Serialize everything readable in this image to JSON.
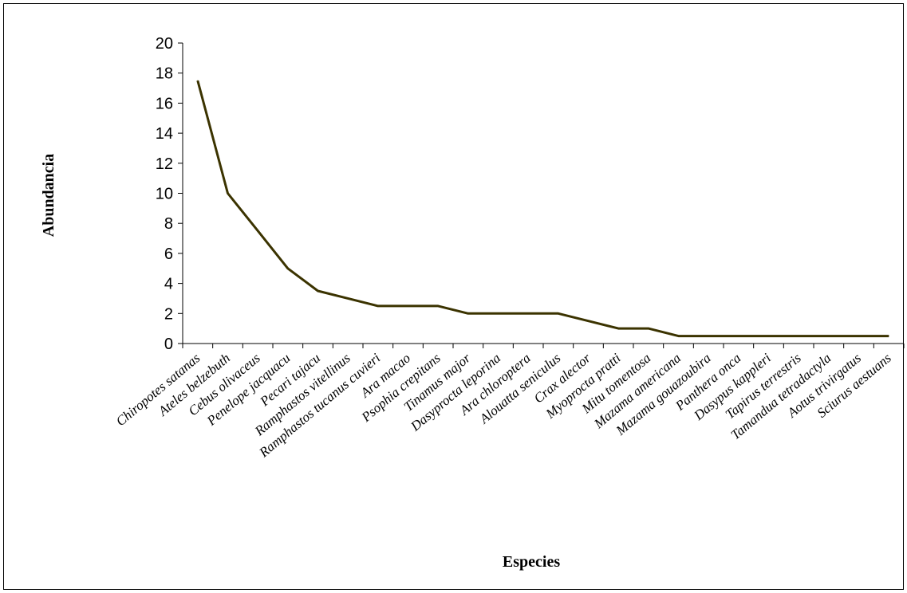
{
  "chart_data": {
    "type": "line",
    "title": "",
    "xlabel": "Especies",
    "ylabel": "Abundancia",
    "ylim": [
      0,
      20
    ],
    "yticks": [
      0,
      2,
      4,
      6,
      8,
      10,
      12,
      14,
      16,
      18,
      20
    ],
    "grid": false,
    "legend": "none",
    "line_color": "#3b3300",
    "categories": [
      "Chiropotes satanas",
      "Ateles belzebuth",
      "Cebus olivaceus",
      "Penelope jacquacu",
      "Pecari tajacu",
      "Ramphastos vitellinus",
      "Ramphastos tucanus cuvieri",
      "Ara macao",
      "Psophia crepitans",
      "Tinamus major",
      "Dasyprocta leporina",
      "Ara chloroptera",
      "Alouatta seniculus",
      "Crax alector",
      "Myoprocta pratti",
      "Mitu tomentosa",
      "Mazama americana",
      "Mazama gouazoubira",
      "Panthera onca",
      "Dasypus kappleri",
      "Tapirus terrestris",
      "Tamandua tetradactyla",
      "Aotus trivirgatus",
      "Sciurus aestuans"
    ],
    "series": [
      {
        "values": [
          17.5,
          10,
          7.5,
          5,
          3.5,
          3,
          2.5,
          2.5,
          2.5,
          2,
          2,
          2,
          2,
          1.5,
          1,
          1,
          0.5,
          0.5,
          0.5,
          0.5,
          0.5,
          0.5,
          0.5,
          0.5
        ]
      }
    ]
  }
}
